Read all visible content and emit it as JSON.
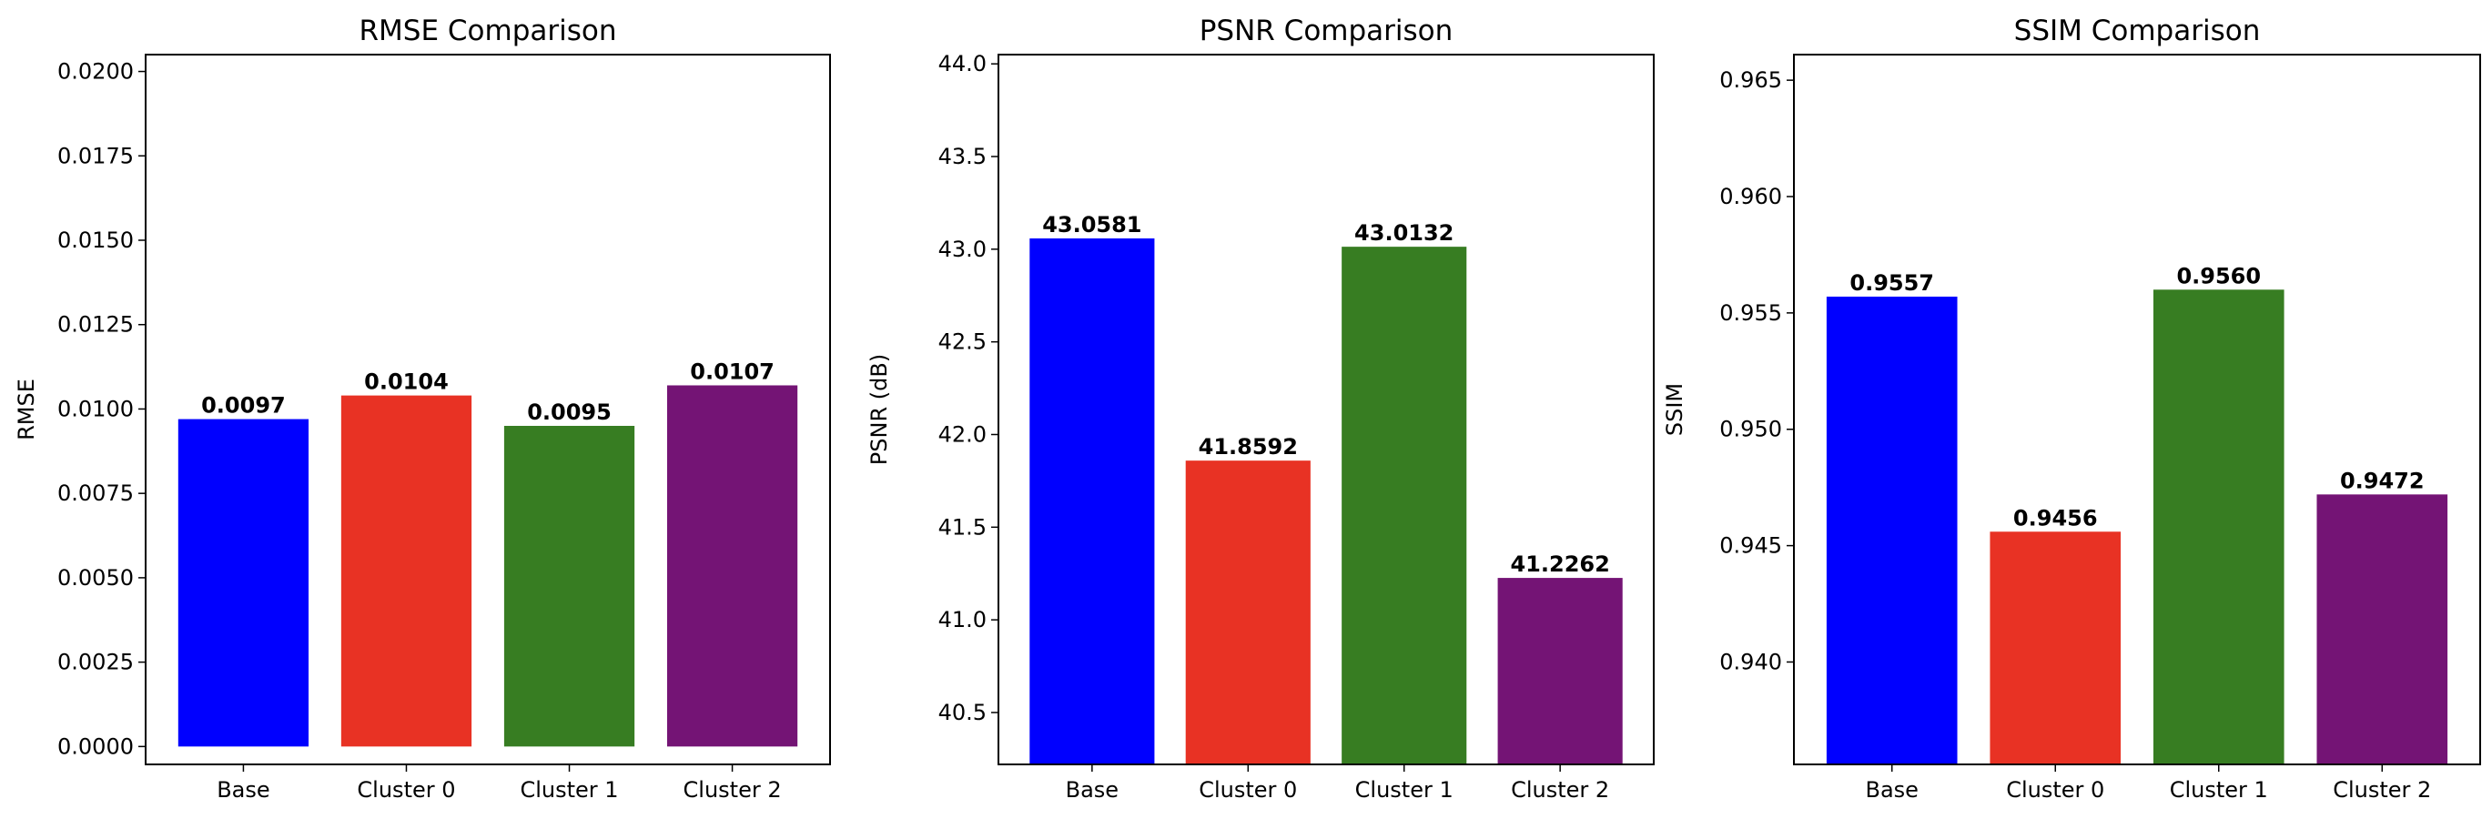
{
  "chart_data": [
    {
      "type": "bar",
      "title": "RMSE Comparison",
      "xlabel": "",
      "ylabel": "RMSE",
      "categories": [
        "Base",
        "Cluster 0",
        "Cluster 1",
        "Cluster 2"
      ],
      "values": [
        0.0097,
        0.0104,
        0.0095,
        0.0107
      ],
      "value_labels": [
        "0.0097",
        "0.0104",
        "0.0095",
        "0.0107"
      ],
      "colors": [
        "#0000ff",
        "#e83224",
        "#377d22",
        "#741475"
      ],
      "ylim": [
        -0.00053,
        0.0205
      ],
      "yticks": [
        0.0,
        0.0025,
        0.005,
        0.0075,
        0.01,
        0.0125,
        0.015,
        0.0175,
        0.02
      ],
      "ytick_labels": [
        "0.0000",
        "0.0025",
        "0.0050",
        "0.0075",
        "0.0100",
        "0.0125",
        "0.0150",
        "0.0175",
        "0.0200"
      ],
      "grid": false
    },
    {
      "type": "bar",
      "title": "PSNR Comparison",
      "xlabel": "",
      "ylabel": "PSNR (dB)",
      "categories": [
        "Base",
        "Cluster 0",
        "Cluster 1",
        "Cluster 2"
      ],
      "values": [
        43.0581,
        41.8592,
        43.0132,
        41.2262
      ],
      "value_labels": [
        "43.0581",
        "41.8592",
        "43.0132",
        "41.2262"
      ],
      "colors": [
        "#0000ff",
        "#e83224",
        "#377d22",
        "#741475"
      ],
      "ylim": [
        40.22,
        44.05
      ],
      "yticks": [
        40.5,
        41.0,
        41.5,
        42.0,
        42.5,
        43.0,
        43.5,
        44.0
      ],
      "ytick_labels": [
        "40.5",
        "41.0",
        "41.5",
        "42.0",
        "42.5",
        "43.0",
        "43.5",
        "44.0"
      ],
      "grid": false
    },
    {
      "type": "bar",
      "title": "SSIM Comparison",
      "xlabel": "",
      "ylabel": "SSIM",
      "categories": [
        "Base",
        "Cluster 0",
        "Cluster 1",
        "Cluster 2"
      ],
      "values": [
        0.9557,
        0.9456,
        0.956,
        0.9472
      ],
      "value_labels": [
        "0.9557",
        "0.9456",
        "0.9560",
        "0.9472"
      ],
      "colors": [
        "#0000ff",
        "#e83224",
        "#377d22",
        "#741475"
      ],
      "ylim": [
        0.9356,
        0.9661
      ],
      "yticks": [
        0.94,
        0.945,
        0.95,
        0.955,
        0.96,
        0.965
      ],
      "ytick_labels": [
        "0.940",
        "0.945",
        "0.950",
        "0.955",
        "0.960",
        "0.965"
      ],
      "grid": false
    }
  ]
}
